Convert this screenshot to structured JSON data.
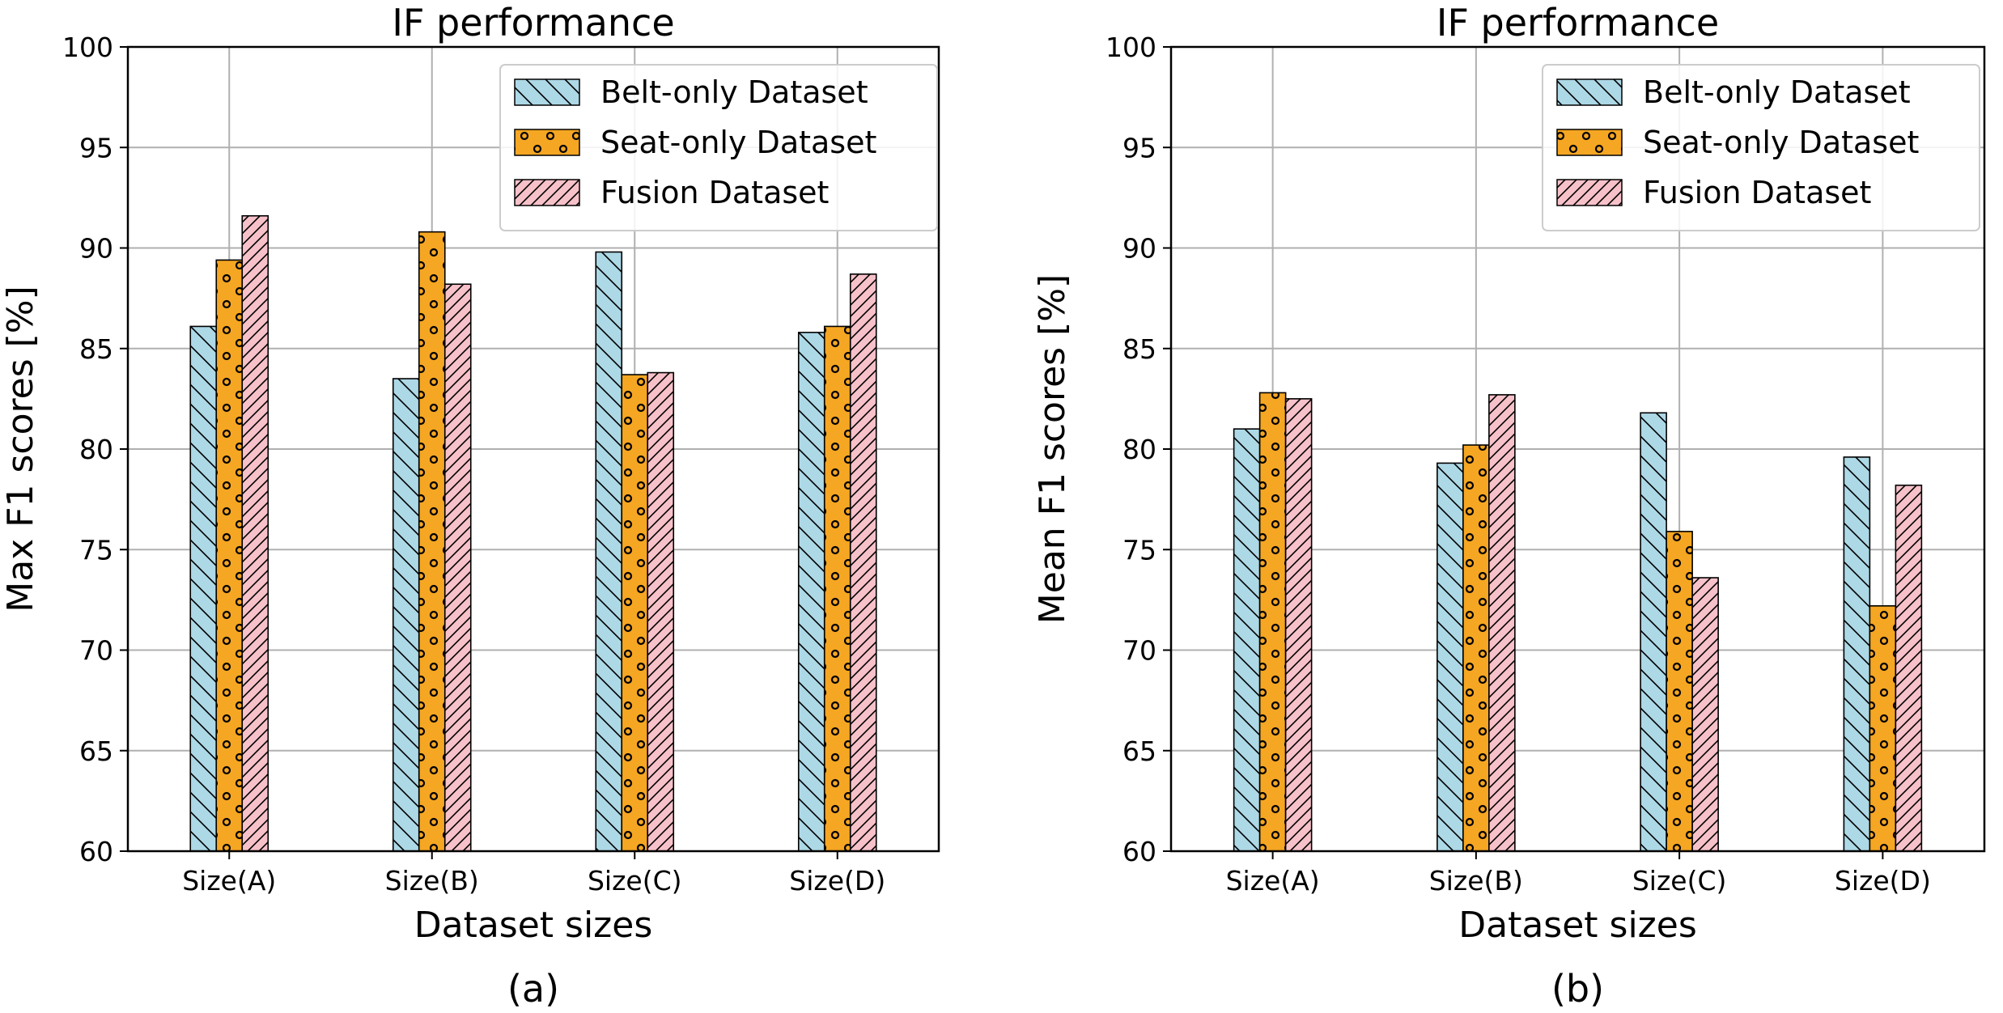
{
  "chart_data": [
    {
      "type": "bar",
      "title": "IF performance",
      "xlabel": "Dataset sizes",
      "ylabel": "Max F1 scores [%]",
      "caption": "(a)",
      "ylim": [
        60,
        100
      ],
      "yticks": [
        60,
        65,
        70,
        75,
        80,
        85,
        90,
        95,
        100
      ],
      "grid": true,
      "legend_position": "top-right",
      "categories": [
        "Size(A)",
        "Size(B)",
        "Size(C)",
        "Size(D)"
      ],
      "series": [
        {
          "name": "Belt-only Dataset",
          "values": [
            86.1,
            83.5,
            89.8,
            85.8
          ]
        },
        {
          "name": "Seat-only Dataset",
          "values": [
            89.4,
            90.8,
            83.7,
            86.1
          ]
        },
        {
          "name": "Fusion Dataset",
          "values": [
            91.6,
            88.2,
            83.8,
            88.7
          ]
        }
      ]
    },
    {
      "type": "bar",
      "title": "IF performance",
      "xlabel": "Dataset sizes",
      "ylabel": "Mean F1 scores [%]",
      "caption": "(b)",
      "ylim": [
        60,
        100
      ],
      "yticks": [
        60,
        65,
        70,
        75,
        80,
        85,
        90,
        95,
        100
      ],
      "grid": true,
      "legend_position": "top-right",
      "categories": [
        "Size(A)",
        "Size(B)",
        "Size(C)",
        "Size(D)"
      ],
      "series": [
        {
          "name": "Belt-only Dataset",
          "values": [
            81.0,
            79.3,
            81.8,
            79.6
          ]
        },
        {
          "name": "Seat-only Dataset",
          "values": [
            82.8,
            80.2,
            75.9,
            72.2
          ]
        },
        {
          "name": "Fusion Dataset",
          "values": [
            82.5,
            82.7,
            73.6,
            78.2
          ]
        }
      ]
    }
  ],
  "colors": {
    "belt": "#add8e6",
    "seat": "#f5a623",
    "fusion": "#f7c1c9",
    "grid": "#b0b0b0"
  }
}
